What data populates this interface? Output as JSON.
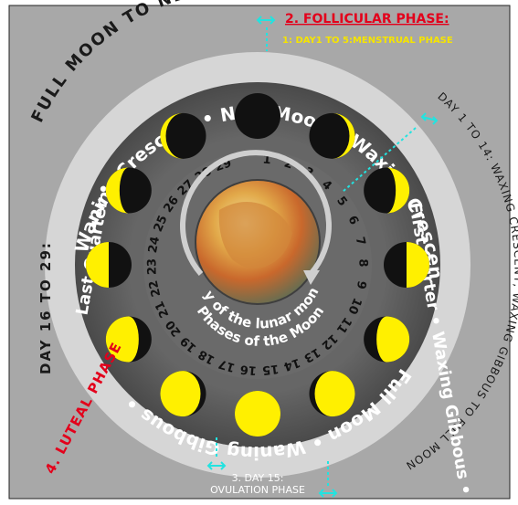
{
  "outer_arc_text": {
    "top": "FULL MOON TO NEW MOON",
    "left": "DAY 16 TO 29:",
    "right": "DAY 1 TO 14:  WAXING CRESCENT,  WAXING GIBBOUS  TO FULL MOON"
  },
  "phase_labels": {
    "follicular": "2. FOLLICULAR PHASE:",
    "menstrual": "1: DAY1 TO 5:MENSTRUAL PHASE",
    "luteal": "4. LUTEAL PHASE",
    "ovulation_day": "3. DAY 15:",
    "ovulation_phase": "OVULATION PHASE"
  },
  "ring_text": {
    "top": "Waning Crescent • New Moon • Waxing Crescent •",
    "right": "First Qurter • Waxing Gibbous •",
    "bottom": "Full Moon • Waning Gibbous •",
    "left": "Last Quarter •"
  },
  "center_text": {
    "line1": "Phases of the Moon",
    "line2": "Day of the lunar month"
  },
  "day_numbers": [
    "1",
    "2",
    "3",
    "4",
    "5",
    "6",
    "7",
    "8",
    "9",
    "10",
    "11",
    "12",
    "13",
    "14",
    "15",
    "16",
    "17",
    "18",
    "19",
    "20",
    "21",
    "22",
    "23",
    "24",
    "25",
    "26",
    "27",
    "28",
    "29"
  ],
  "moon_phases": [
    {
      "name": "New Moon",
      "lit": 0.0,
      "side": "right"
    },
    {
      "name": "Waxing Crescent",
      "lit": 0.12,
      "side": "right"
    },
    {
      "name": "Waxing Crescent",
      "lit": 0.3,
      "side": "right"
    },
    {
      "name": "First Quarter",
      "lit": 0.5,
      "side": "right"
    },
    {
      "name": "Waxing Gibbous",
      "lit": 0.72,
      "side": "right"
    },
    {
      "name": "Waxing Gibbous",
      "lit": 0.88,
      "side": "right"
    },
    {
      "name": "Full Moon",
      "lit": 1.0,
      "side": "right"
    },
    {
      "name": "Waning Gibbous",
      "lit": 0.88,
      "side": "left"
    },
    {
      "name": "Waning Gibbous",
      "lit": 0.72,
      "side": "left"
    },
    {
      "name": "Last Quarter",
      "lit": 0.5,
      "side": "left"
    },
    {
      "name": "Waning Crescent",
      "lit": 0.3,
      "side": "left"
    },
    {
      "name": "Waning Crescent",
      "lit": 0.12,
      "side": "left"
    }
  ],
  "colors": {
    "background": "#a8a8a8",
    "ring": "#5e5e5e",
    "moon_lit": "#fff000",
    "moon_dark": "#111111",
    "red_label": "#e3001b",
    "yellow_label": "#f5e400",
    "cyan_arrow": "#22e3e0",
    "white_text": "#ffffff",
    "dark_text": "#1a1a1a"
  }
}
